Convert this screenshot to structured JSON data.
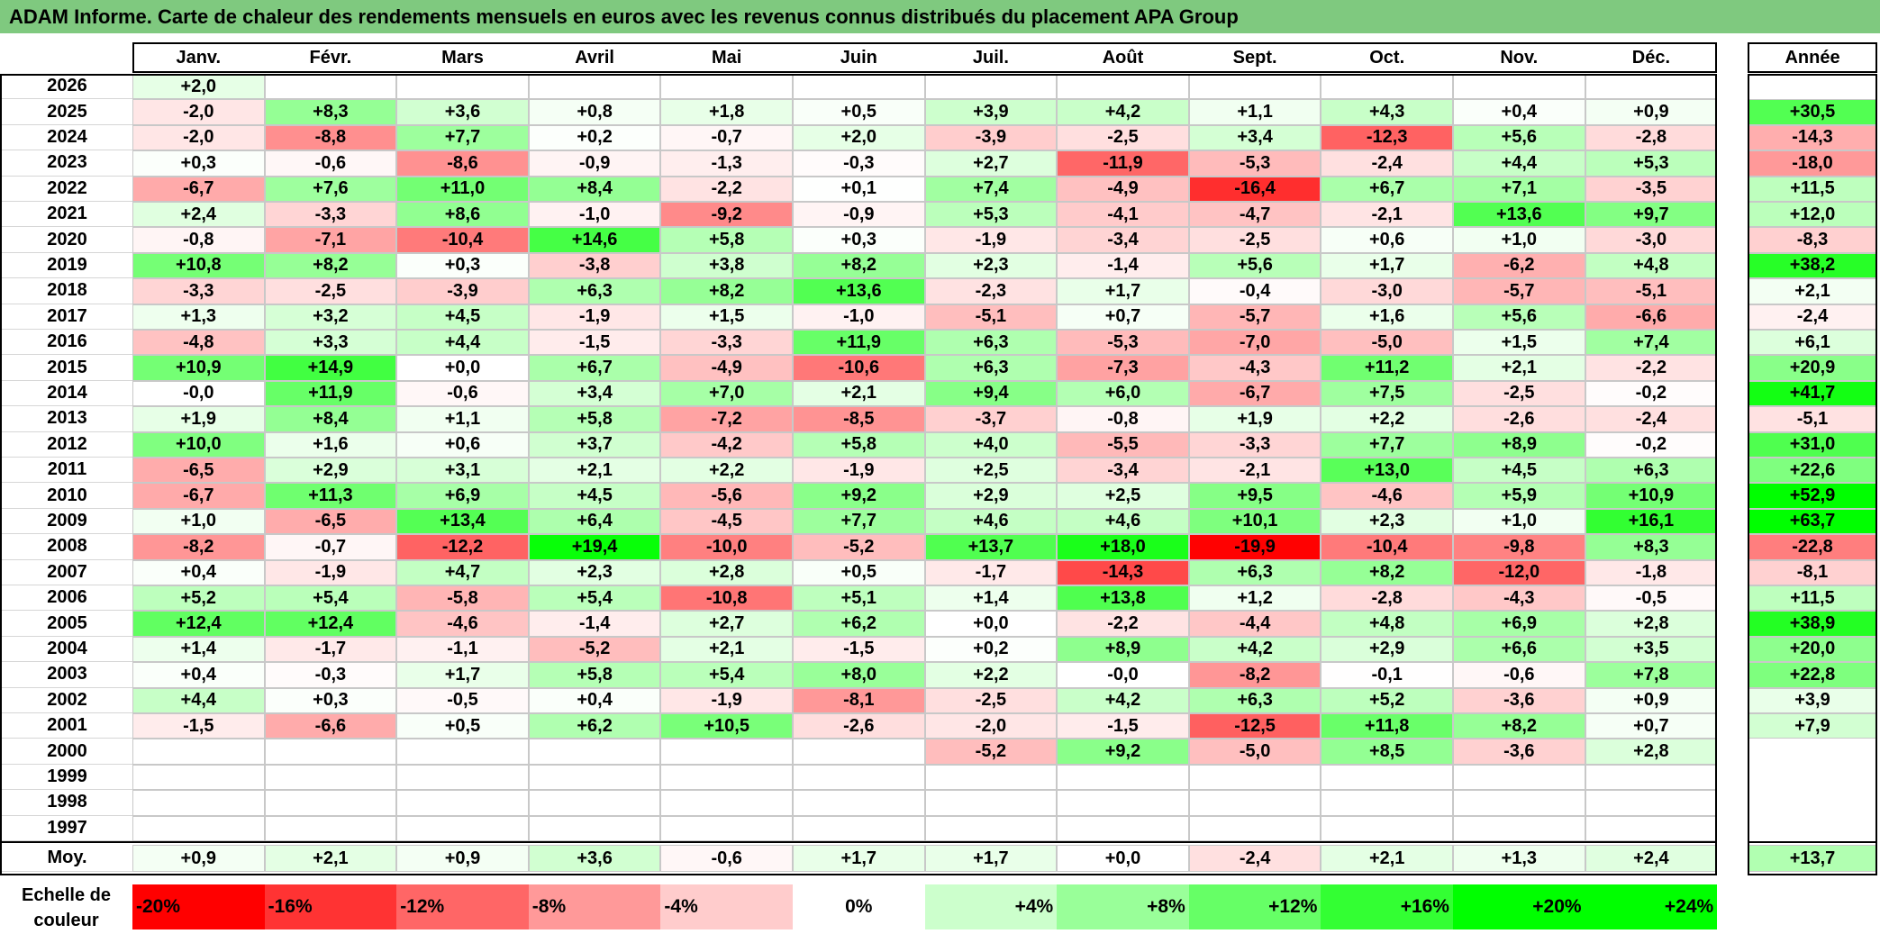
{
  "title": "ADAM Informe. Carte de chaleur des rendements mensuels en euros avec les revenus connus distribués du placement APA Group",
  "chart_data": {
    "type": "heatmap",
    "columns": [
      "Janv.",
      "Févr.",
      "Mars",
      "Avril",
      "Mai",
      "Juin",
      "Juil.",
      "Août",
      "Sept.",
      "Oct.",
      "Nov.",
      "Déc."
    ],
    "year_header": "Année",
    "rows": [
      {
        "year": "2026",
        "months": [
          "+2,0",
          "",
          "",
          "",
          "",
          "",
          "",
          "",
          "",
          "",
          "",
          ""
        ],
        "annual": ""
      },
      {
        "year": "2025",
        "months": [
          "-2,0",
          "+8,3",
          "+3,6",
          "+0,8",
          "+1,8",
          "+0,5",
          "+3,9",
          "+4,2",
          "+1,1",
          "+4,3",
          "+0,4",
          "+0,9"
        ],
        "annual": "+30,5"
      },
      {
        "year": "2024",
        "months": [
          "-2,0",
          "-8,8",
          "+7,7",
          "+0,2",
          "-0,7",
          "+2,0",
          "-3,9",
          "-2,5",
          "+3,4",
          "-12,3",
          "+5,6",
          "-2,8"
        ],
        "annual": "-14,3"
      },
      {
        "year": "2023",
        "months": [
          "+0,3",
          "-0,6",
          "-8,6",
          "-0,9",
          "-1,3",
          "-0,3",
          "+2,7",
          "-11,9",
          "-5,3",
          "-2,4",
          "+4,4",
          "+5,3"
        ],
        "annual": "-18,0"
      },
      {
        "year": "2022",
        "months": [
          "-6,7",
          "+7,6",
          "+11,0",
          "+8,4",
          "-2,2",
          "+0,1",
          "+7,4",
          "-4,9",
          "-16,4",
          "+6,7",
          "+7,1",
          "-3,5"
        ],
        "annual": "+11,5"
      },
      {
        "year": "2021",
        "months": [
          "+2,4",
          "-3,3",
          "+8,6",
          "-1,0",
          "-9,2",
          "-0,9",
          "+5,3",
          "-4,1",
          "-4,7",
          "-2,1",
          "+13,6",
          "+9,7"
        ],
        "annual": "+12,0"
      },
      {
        "year": "2020",
        "months": [
          "-0,8",
          "-7,1",
          "-10,4",
          "+14,6",
          "+5,8",
          "+0,3",
          "-1,9",
          "-3,4",
          "-2,5",
          "+0,6",
          "+1,0",
          "-3,0"
        ],
        "annual": "-8,3"
      },
      {
        "year": "2019",
        "months": [
          "+10,8",
          "+8,2",
          "+0,3",
          "-3,8",
          "+3,8",
          "+8,2",
          "+2,3",
          "-1,4",
          "+5,6",
          "+1,7",
          "-6,2",
          "+4,8"
        ],
        "annual": "+38,2"
      },
      {
        "year": "2018",
        "months": [
          "-3,3",
          "-2,5",
          "-3,9",
          "+6,3",
          "+8,2",
          "+13,6",
          "-2,3",
          "+1,7",
          "-0,4",
          "-3,0",
          "-5,7",
          "-5,1"
        ],
        "annual": "+2,1"
      },
      {
        "year": "2017",
        "months": [
          "+1,3",
          "+3,2",
          "+4,5",
          "-1,9",
          "+1,5",
          "-1,0",
          "-5,1",
          "+0,7",
          "-5,7",
          "+1,6",
          "+5,6",
          "-6,6"
        ],
        "annual": "-2,4"
      },
      {
        "year": "2016",
        "months": [
          "-4,8",
          "+3,3",
          "+4,4",
          "-1,5",
          "-3,3",
          "+11,9",
          "+6,3",
          "-5,3",
          "-7,0",
          "-5,0",
          "+1,5",
          "+7,4"
        ],
        "annual": "+6,1"
      },
      {
        "year": "2015",
        "months": [
          "+10,9",
          "+14,9",
          "+0,0",
          "+6,7",
          "-4,9",
          "-10,6",
          "+6,3",
          "-7,3",
          "-4,3",
          "+11,2",
          "+2,1",
          "-2,2"
        ],
        "annual": "+20,9"
      },
      {
        "year": "2014",
        "months": [
          "-0,0",
          "+11,9",
          "-0,6",
          "+3,4",
          "+7,0",
          "+2,1",
          "+9,4",
          "+6,0",
          "-6,7",
          "+7,5",
          "-2,5",
          "-0,2"
        ],
        "annual": "+41,7"
      },
      {
        "year": "2013",
        "months": [
          "+1,9",
          "+8,4",
          "+1,1",
          "+5,8",
          "-7,2",
          "-8,5",
          "-3,7",
          "-0,8",
          "+1,9",
          "+2,2",
          "-2,6",
          "-2,4"
        ],
        "annual": "-5,1"
      },
      {
        "year": "2012",
        "months": [
          "+10,0",
          "+1,6",
          "+0,6",
          "+3,7",
          "-4,2",
          "+5,8",
          "+4,0",
          "-5,5",
          "-3,3",
          "+7,7",
          "+8,9",
          "-0,2"
        ],
        "annual": "+31,0"
      },
      {
        "year": "2011",
        "months": [
          "-6,5",
          "+2,9",
          "+3,1",
          "+2,1",
          "+2,2",
          "-1,9",
          "+2,5",
          "-3,4",
          "-2,1",
          "+13,0",
          "+4,5",
          "+6,3"
        ],
        "annual": "+22,6"
      },
      {
        "year": "2010",
        "months": [
          "-6,7",
          "+11,3",
          "+6,9",
          "+4,5",
          "-5,6",
          "+9,2",
          "+2,9",
          "+2,5",
          "+9,5",
          "-4,6",
          "+5,9",
          "+10,9"
        ],
        "annual": "+52,9"
      },
      {
        "year": "2009",
        "months": [
          "+1,0",
          "-6,5",
          "+13,4",
          "+6,4",
          "-4,5",
          "+7,7",
          "+4,6",
          "+4,6",
          "+10,1",
          "+2,3",
          "+1,0",
          "+16,1"
        ],
        "annual": "+63,7"
      },
      {
        "year": "2008",
        "months": [
          "-8,2",
          "-0,7",
          "-12,2",
          "+19,4",
          "-10,0",
          "-5,2",
          "+13,7",
          "+18,0",
          "-19,9",
          "-10,4",
          "-9,8",
          "+8,3"
        ],
        "annual": "-22,8"
      },
      {
        "year": "2007",
        "months": [
          "+0,4",
          "-1,9",
          "+4,7",
          "+2,3",
          "+2,8",
          "+0,5",
          "-1,7",
          "-14,3",
          "+6,3",
          "+8,2",
          "-12,0",
          "-1,8"
        ],
        "annual": "-8,1"
      },
      {
        "year": "2006",
        "months": [
          "+5,2",
          "+5,4",
          "-5,8",
          "+5,4",
          "-10,8",
          "+5,1",
          "+1,4",
          "+13,8",
          "+1,2",
          "-2,8",
          "-4,3",
          "-0,5"
        ],
        "annual": "+11,5"
      },
      {
        "year": "2005",
        "months": [
          "+12,4",
          "+12,4",
          "-4,6",
          "-1,4",
          "+2,7",
          "+6,2",
          "+0,0",
          "-2,2",
          "-4,4",
          "+4,8",
          "+6,9",
          "+2,8"
        ],
        "annual": "+38,9"
      },
      {
        "year": "2004",
        "months": [
          "+1,4",
          "-1,7",
          "-1,1",
          "-5,2",
          "+2,1",
          "-1,5",
          "+0,2",
          "+8,9",
          "+4,2",
          "+2,9",
          "+6,6",
          "+3,5"
        ],
        "annual": "+20,0"
      },
      {
        "year": "2003",
        "months": [
          "+0,4",
          "-0,3",
          "+1,7",
          "+5,8",
          "+5,4",
          "+8,0",
          "+2,2",
          "-0,0",
          "-8,2",
          "-0,1",
          "-0,6",
          "+7,8"
        ],
        "annual": "+22,8"
      },
      {
        "year": "2002",
        "months": [
          "+4,4",
          "+0,3",
          "-0,5",
          "+0,4",
          "-1,9",
          "-8,1",
          "-2,5",
          "+4,2",
          "+6,3",
          "+5,2",
          "-3,6",
          "+0,9"
        ],
        "annual": "+3,9"
      },
      {
        "year": "2001",
        "months": [
          "-1,5",
          "-6,6",
          "+0,5",
          "+6,2",
          "+10,5",
          "-2,6",
          "-2,0",
          "-1,5",
          "-12,5",
          "+11,8",
          "+8,2",
          "+0,7"
        ],
        "annual": "+7,9"
      },
      {
        "year": "2000",
        "months": [
          "",
          "",
          "",
          "",
          "",
          "",
          "-5,2",
          "+9,2",
          "-5,0",
          "+8,5",
          "-3,6",
          "+2,8"
        ],
        "annual": ""
      },
      {
        "year": "1999",
        "months": [
          "",
          "",
          "",
          "",
          "",
          "",
          "",
          "",
          "",
          "",
          "",
          ""
        ],
        "annual": ""
      },
      {
        "year": "1998",
        "months": [
          "",
          "",
          "",
          "",
          "",
          "",
          "",
          "",
          "",
          "",
          "",
          ""
        ],
        "annual": ""
      },
      {
        "year": "1997",
        "months": [
          "",
          "",
          "",
          "",
          "",
          "",
          "",
          "",
          "",
          "",
          "",
          ""
        ],
        "annual": ""
      }
    ],
    "average_label": "Moy.",
    "averages": [
      "+0,9",
      "+2,1",
      "+0,9",
      "+3,6",
      "-0,6",
      "+1,7",
      "+1,7",
      "+0,0",
      "-2,4",
      "+2,1",
      "+1,3",
      "+2,4"
    ],
    "average_annual": "+13,7",
    "scale_label": "Echelle de couleur",
    "scale_values": [
      "-20%",
      "-16%",
      "-12%",
      "-8%",
      "-4%",
      "0%",
      "+4%",
      "+8%",
      "+12%",
      "+16%",
      "+20%",
      "+24%"
    ],
    "colors": {
      "negative": "#ff0000",
      "neutral": "#ffffff",
      "positive": "#00ff00",
      "title_bg": "#7fc97f"
    }
  }
}
